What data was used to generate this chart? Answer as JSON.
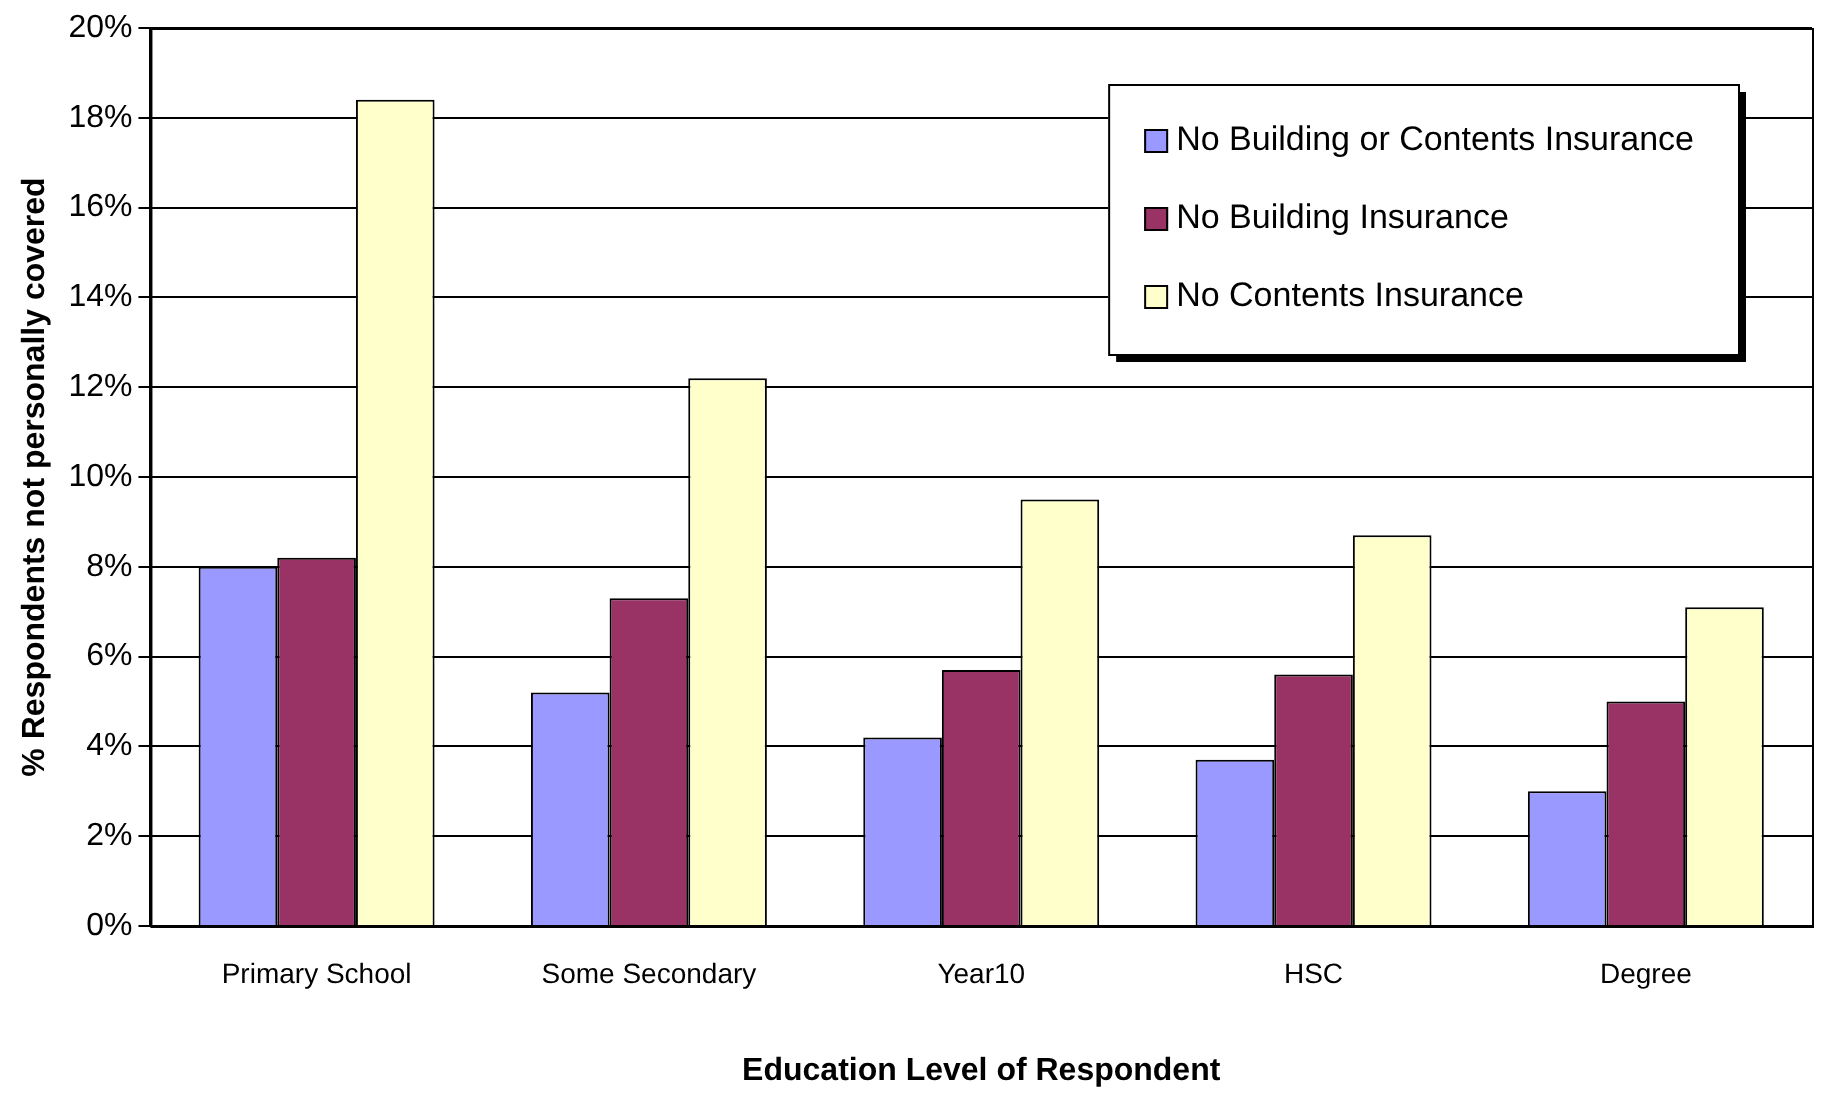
{
  "chart_data": {
    "type": "bar",
    "xlabel": "Education Level of Respondent",
    "ylabel": "% Respondents not personally covered",
    "categories": [
      "Primary School",
      "Some Secondary",
      "Year10",
      "HSC",
      "Degree"
    ],
    "series": [
      {
        "name": "No Building or Contents Insurance",
        "color": "#9999ff",
        "values": [
          8.0,
          5.2,
          4.2,
          3.7,
          3.0
        ]
      },
      {
        "name": "No Building Insurance",
        "color": "#993366",
        "values": [
          8.2,
          7.3,
          5.7,
          5.6,
          5.0
        ]
      },
      {
        "name": "No Contents Insurance",
        "color": "#ffffcc",
        "values": [
          18.4,
          12.2,
          9.5,
          8.7,
          7.1
        ]
      }
    ],
    "ylim": [
      0,
      20
    ],
    "yticks": [
      {
        "value": 0,
        "label": "0%"
      },
      {
        "value": 2,
        "label": "2%"
      },
      {
        "value": 4,
        "label": "4%"
      },
      {
        "value": 6,
        "label": "6%"
      },
      {
        "value": 8,
        "label": "8%"
      },
      {
        "value": 10,
        "label": "10%"
      },
      {
        "value": 12,
        "label": "12%"
      },
      {
        "value": 14,
        "label": "14%"
      },
      {
        "value": 16,
        "label": "16%"
      },
      {
        "value": 18,
        "label": "18%"
      },
      {
        "value": 20,
        "label": "20%"
      }
    ],
    "grid": "y",
    "legend": "top right"
  }
}
